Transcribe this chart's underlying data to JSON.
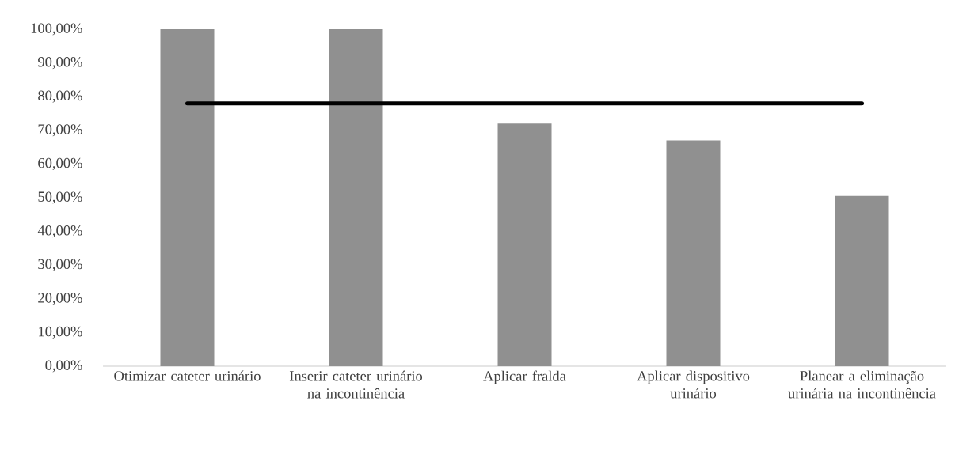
{
  "chart_data": {
    "type": "bar",
    "categories": [
      "Otimizar cateter urinário",
      "Inserir cateter urinário na incontinência",
      "Aplicar fralda",
      "Aplicar dispositivo urinário",
      "Planear a eliminação urinária na incontinência"
    ],
    "series": [
      {
        "color": "#909090",
        "values": [
          100,
          100,
          72,
          67,
          50.5
        ]
      },
      {
        "type": "line",
        "color": "#000000",
        "values": [
          78,
          78,
          78,
          78,
          78
        ]
      }
    ],
    "ylim": [
      0,
      100
    ],
    "yticks": [
      {
        "value": 0,
        "label": "0,00%"
      },
      {
        "value": 10,
        "label": "10,00%"
      },
      {
        "value": 20,
        "label": "20,00%"
      },
      {
        "value": 30,
        "label": "30,00%"
      },
      {
        "value": 40,
        "label": "40,00%"
      },
      {
        "value": 50,
        "label": "50,00%"
      },
      {
        "value": 60,
        "label": "60,00%"
      },
      {
        "value": 70,
        "label": "70,00%"
      },
      {
        "value": 80,
        "label": "80,00%"
      },
      {
        "value": 90,
        "label": "90,00%"
      },
      {
        "value": 100,
        "label": "100,00%"
      }
    ],
    "grid": false
  }
}
